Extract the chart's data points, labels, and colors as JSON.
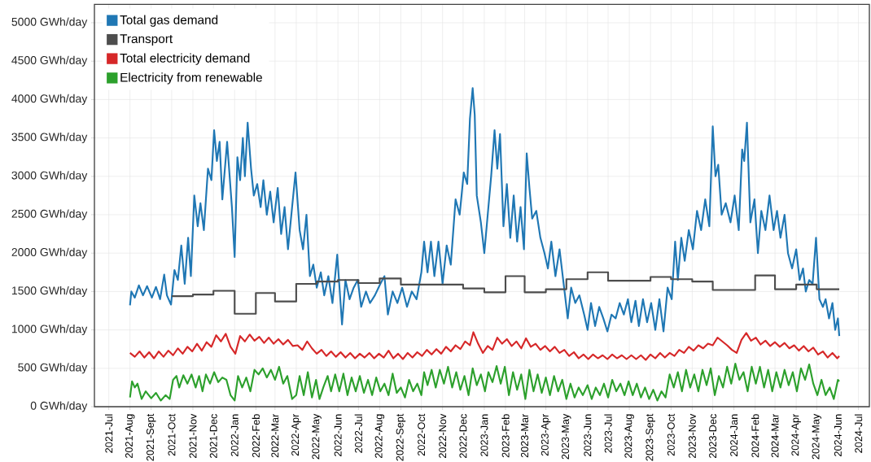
{
  "chart_data": {
    "type": "line",
    "xlim": [
      "2021-06-10",
      "2024-07-17"
    ],
    "ylim": [
      0,
      5240
    ],
    "xticks": [
      {
        "value": "2021-07-01",
        "label": "2021-Jul"
      },
      {
        "value": "2021-08-01",
        "label": "2021-Aug"
      },
      {
        "value": "2021-09-01",
        "label": "2021-Sept"
      },
      {
        "value": "2021-10-01",
        "label": "2021-Oct"
      },
      {
        "value": "2021-11-01",
        "label": "2021-Nov"
      },
      {
        "value": "2021-12-01",
        "label": "2021-Dec"
      },
      {
        "value": "2022-01-01",
        "label": "2022-Jan"
      },
      {
        "value": "2022-02-01",
        "label": "2022-Feb"
      },
      {
        "value": "2022-03-01",
        "label": "2022-Mar"
      },
      {
        "value": "2022-04-01",
        "label": "2022-Apr"
      },
      {
        "value": "2022-05-01",
        "label": "2022-May"
      },
      {
        "value": "2022-06-01",
        "label": "2022-Jun"
      },
      {
        "value": "2022-07-01",
        "label": "2022-Jul"
      },
      {
        "value": "2022-08-01",
        "label": "2022-Aug"
      },
      {
        "value": "2022-09-01",
        "label": "2022-Sept"
      },
      {
        "value": "2022-10-01",
        "label": "2022-Oct"
      },
      {
        "value": "2022-11-01",
        "label": "2022-Nov"
      },
      {
        "value": "2022-12-01",
        "label": "2022-Dec"
      },
      {
        "value": "2023-01-01",
        "label": "2023-Jan"
      },
      {
        "value": "2023-02-01",
        "label": "2023-Feb"
      },
      {
        "value": "2023-03-01",
        "label": "2023-Mar"
      },
      {
        "value": "2023-04-01",
        "label": "2023-Apr"
      },
      {
        "value": "2023-05-01",
        "label": "2023-May"
      },
      {
        "value": "2023-06-01",
        "label": "2023-Jun"
      },
      {
        "value": "2023-07-01",
        "label": "2023-Jul"
      },
      {
        "value": "2023-08-01",
        "label": "2023-Aug"
      },
      {
        "value": "2023-09-01",
        "label": "2023-Sept"
      },
      {
        "value": "2023-10-01",
        "label": "2023-Oct"
      },
      {
        "value": "2023-11-01",
        "label": "2023-Nov"
      },
      {
        "value": "2023-12-01",
        "label": "2023-Dec"
      },
      {
        "value": "2024-01-01",
        "label": "2024-Jan"
      },
      {
        "value": "2024-02-01",
        "label": "2024-Feb"
      },
      {
        "value": "2024-03-01",
        "label": "2024-Mar"
      },
      {
        "value": "2024-04-01",
        "label": "2024-Apr"
      },
      {
        "value": "2024-05-01",
        "label": "2024-May"
      },
      {
        "value": "2024-06-01",
        "label": "2024-Jun"
      },
      {
        "value": "2024-07-01",
        "label": "2024-Jul"
      }
    ],
    "yticks": [
      {
        "value": 0,
        "label": "0 GWh/day"
      },
      {
        "value": 500,
        "label": "500 GWh/day"
      },
      {
        "value": 1000,
        "label": "1000 GWh/day"
      },
      {
        "value": 1500,
        "label": "1500 GWh/day"
      },
      {
        "value": 2000,
        "label": "2000 GWh/day"
      },
      {
        "value": 2500,
        "label": "2500 GWh/day"
      },
      {
        "value": 3000,
        "label": "3000 GWh/day"
      },
      {
        "value": 3500,
        "label": "3500 GWh/day"
      },
      {
        "value": 4000,
        "label": "4000 GWh/day"
      },
      {
        "value": 4500,
        "label": "4500 GWh/day"
      },
      {
        "value": 5000,
        "label": "5000 GWh/day"
      }
    ],
    "grid": true,
    "legend": "top left",
    "series": [
      {
        "name": "Total gas demand",
        "color": "#1f77b4",
        "x": [
          "2021-08-01",
          "2021-08-03",
          "2021-08-08",
          "2021-08-14",
          "2021-08-20",
          "2021-08-26",
          "2021-09-02",
          "2021-09-08",
          "2021-09-14",
          "2021-09-20",
          "2021-09-24",
          "2021-09-30",
          "2021-10-05",
          "2021-10-10",
          "2021-10-15",
          "2021-10-20",
          "2021-10-25",
          "2021-10-29",
          "2021-11-03",
          "2021-11-08",
          "2021-11-12",
          "2021-11-17",
          "2021-11-23",
          "2021-11-28",
          "2021-12-02",
          "2021-12-06",
          "2021-12-10",
          "2021-12-14",
          "2021-12-21",
          "2021-12-28",
          "2022-01-01",
          "2022-01-05",
          "2022-01-09",
          "2022-01-13",
          "2022-01-16",
          "2022-01-20",
          "2022-01-25",
          "2022-01-29",
          "2022-02-03",
          "2022-02-08",
          "2022-02-12",
          "2022-02-17",
          "2022-02-22",
          "2022-02-27",
          "2022-03-05",
          "2022-03-10",
          "2022-03-15",
          "2022-03-20",
          "2022-03-26",
          "2022-03-31",
          "2022-04-06",
          "2022-04-11",
          "2022-04-16",
          "2022-04-21",
          "2022-04-26",
          "2022-05-01",
          "2022-05-07",
          "2022-05-12",
          "2022-05-18",
          "2022-05-24",
          "2022-05-31",
          "2022-06-07",
          "2022-06-12",
          "2022-06-18",
          "2022-06-24",
          "2022-06-30",
          "2022-07-05",
          "2022-07-12",
          "2022-07-18",
          "2022-07-25",
          "2022-08-02",
          "2022-08-08",
          "2022-08-13",
          "2022-08-20",
          "2022-08-27",
          "2022-09-03",
          "2022-09-10",
          "2022-09-17",
          "2022-09-24",
          "2022-10-01",
          "2022-10-05",
          "2022-10-10",
          "2022-10-15",
          "2022-10-20",
          "2022-10-26",
          "2022-11-01",
          "2022-11-07",
          "2022-11-13",
          "2022-11-20",
          "2022-11-26",
          "2022-12-02",
          "2022-12-07",
          "2022-12-11",
          "2022-12-15",
          "2022-12-18",
          "2022-12-21",
          "2022-12-27",
          "2023-01-01",
          "2023-01-06",
          "2023-01-11",
          "2023-01-16",
          "2023-01-20",
          "2023-01-24",
          "2023-01-29",
          "2023-02-03",
          "2023-02-08",
          "2023-02-13",
          "2023-02-18",
          "2023-02-23",
          "2023-02-28",
          "2023-03-04",
          "2023-03-08",
          "2023-03-12",
          "2023-03-18",
          "2023-03-24",
          "2023-03-30",
          "2023-04-04",
          "2023-04-09",
          "2023-04-15",
          "2023-04-21",
          "2023-04-27",
          "2023-05-03",
          "2023-05-08",
          "2023-05-14",
          "2023-05-20",
          "2023-05-27",
          "2023-06-01",
          "2023-06-06",
          "2023-06-12",
          "2023-06-18",
          "2023-06-24",
          "2023-06-30",
          "2023-07-06",
          "2023-07-12",
          "2023-07-18",
          "2023-07-24",
          "2023-07-30",
          "2023-08-04",
          "2023-08-10",
          "2023-08-15",
          "2023-08-21",
          "2023-08-27",
          "2023-09-02",
          "2023-09-08",
          "2023-09-14",
          "2023-09-20",
          "2023-09-26",
          "2023-10-02",
          "2023-10-07",
          "2023-10-11",
          "2023-10-16",
          "2023-10-21",
          "2023-10-27",
          "2023-11-02",
          "2023-11-08",
          "2023-11-14",
          "2023-11-20",
          "2023-11-26",
          "2023-12-01",
          "2023-12-05",
          "2023-12-09",
          "2023-12-14",
          "2023-12-20",
          "2023-12-27",
          "2024-01-02",
          "2024-01-08",
          "2024-01-13",
          "2024-01-16",
          "2024-01-20",
          "2024-01-25",
          "2024-01-31",
          "2024-02-05",
          "2024-02-10",
          "2024-02-16",
          "2024-02-22",
          "2024-02-28",
          "2024-03-04",
          "2024-03-09",
          "2024-03-15",
          "2024-03-20",
          "2024-03-26",
          "2024-04-01",
          "2024-04-06",
          "2024-04-11",
          "2024-04-15",
          "2024-04-20",
          "2024-04-25",
          "2024-04-30",
          "2024-05-05",
          "2024-05-10",
          "2024-05-14",
          "2024-05-19",
          "2024-05-24",
          "2024-05-28",
          "2024-06-01",
          "2024-06-03"
        ],
        "values": [
          1320,
          1500,
          1420,
          1580,
          1450,
          1570,
          1420,
          1560,
          1400,
          1720,
          1450,
          1330,
          1780,
          1650,
          2100,
          1600,
          2200,
          1700,
          2750,
          2350,
          2650,
          2300,
          3100,
          2950,
          3600,
          3200,
          3450,
          2700,
          3450,
          2600,
          1950,
          3250,
          2950,
          3500,
          3000,
          3700,
          3100,
          2750,
          2900,
          2600,
          2950,
          2500,
          2800,
          2400,
          2850,
          2250,
          2600,
          2050,
          2600,
          3050,
          2300,
          2050,
          2500,
          1700,
          1850,
          1550,
          1750,
          1450,
          1700,
          1350,
          1980,
          1070,
          1650,
          1400,
          1550,
          1650,
          1300,
          1500,
          1350,
          1450,
          1600,
          1700,
          1200,
          1500,
          1350,
          1550,
          1300,
          1500,
          1400,
          1750,
          2150,
          1750,
          2150,
          1700,
          2150,
          1600,
          2100,
          1850,
          2700,
          2500,
          3050,
          2900,
          3750,
          4150,
          3800,
          2750,
          2400,
          2000,
          2500,
          3000,
          3600,
          3100,
          3550,
          2350,
          2900,
          2200,
          2750,
          2150,
          2600,
          2050,
          3300,
          2850,
          2450,
          2550,
          2200,
          2000,
          1800,
          2150,
          1700,
          2050,
          1600,
          1150,
          1550,
          1350,
          1450,
          1200,
          1000,
          1350,
          1050,
          1300,
          1150,
          980,
          1200,
          1150,
          1350,
          1200,
          1400,
          1100,
          1380,
          1050,
          1400,
          1100,
          1350,
          1000,
          1400,
          980,
          1550,
          1400,
          2150,
          1650,
          2200,
          1900,
          2300,
          2050,
          2550,
          2300,
          2700,
          2350,
          3650,
          3000,
          3150,
          2500,
          2650,
          2400,
          2750,
          2300,
          3350,
          3200,
          3700,
          2400,
          2700,
          2000,
          2550,
          2300,
          2750,
          2300,
          2550,
          2200,
          2500,
          2000,
          1800,
          2050,
          1650,
          1800,
          1500,
          1650,
          1600,
          2200,
          1400,
          1300,
          1400,
          1150,
          1350,
          1000,
          1150,
          920
        ]
      },
      {
        "name": "Transport",
        "color": "#4d4d4d",
        "type": "step",
        "x": [
          "2021-10-01",
          "2021-11-01",
          "2021-12-01",
          "2022-01-01",
          "2022-02-01",
          "2022-03-01",
          "2022-04-01",
          "2022-05-01",
          "2022-06-01",
          "2022-07-01",
          "2022-08-01",
          "2022-09-01",
          "2022-10-01",
          "2022-11-01",
          "2022-12-01",
          "2023-01-01",
          "2023-02-01",
          "2023-03-01",
          "2023-04-01",
          "2023-05-01",
          "2023-06-01",
          "2023-07-01",
          "2023-08-01",
          "2023-09-01",
          "2023-10-01",
          "2023-11-01",
          "2023-12-01",
          "2024-01-01",
          "2024-02-01",
          "2024-03-01",
          "2024-04-01",
          "2024-05-01",
          "2024-06-03"
        ],
        "values": [
          1440,
          1460,
          1510,
          1210,
          1480,
          1370,
          1600,
          1630,
          1650,
          1610,
          1670,
          1590,
          1590,
          1590,
          1540,
          1490,
          1700,
          1490,
          1530,
          1660,
          1750,
          1640,
          1640,
          1690,
          1660,
          1630,
          1520,
          1520,
          1710,
          1530,
          1590,
          1530,
          1530
        ]
      },
      {
        "name": "Total electricity demand",
        "color": "#d62728",
        "x": [
          "2021-08-01",
          "2021-08-08",
          "2021-08-15",
          "2021-08-22",
          "2021-08-29",
          "2021-09-05",
          "2021-09-12",
          "2021-09-19",
          "2021-09-26",
          "2021-10-03",
          "2021-10-10",
          "2021-10-17",
          "2021-10-24",
          "2021-10-31",
          "2021-11-07",
          "2021-11-14",
          "2021-11-21",
          "2021-11-28",
          "2021-12-05",
          "2021-12-12",
          "2021-12-19",
          "2021-12-26",
          "2022-01-02",
          "2022-01-09",
          "2022-01-16",
          "2022-01-23",
          "2022-01-30",
          "2022-02-06",
          "2022-02-13",
          "2022-02-20",
          "2022-02-27",
          "2022-03-06",
          "2022-03-13",
          "2022-03-20",
          "2022-03-27",
          "2022-04-03",
          "2022-04-10",
          "2022-04-17",
          "2022-04-24",
          "2022-05-01",
          "2022-05-08",
          "2022-05-15",
          "2022-05-22",
          "2022-05-29",
          "2022-06-05",
          "2022-06-12",
          "2022-06-19",
          "2022-06-26",
          "2022-07-03",
          "2022-07-10",
          "2022-07-17",
          "2022-07-24",
          "2022-07-31",
          "2022-08-07",
          "2022-08-14",
          "2022-08-21",
          "2022-08-28",
          "2022-09-04",
          "2022-09-11",
          "2022-09-18",
          "2022-09-25",
          "2022-10-02",
          "2022-10-09",
          "2022-10-16",
          "2022-10-23",
          "2022-10-30",
          "2022-11-06",
          "2022-11-13",
          "2022-11-20",
          "2022-11-27",
          "2022-12-04",
          "2022-12-11",
          "2022-12-16",
          "2022-12-23",
          "2022-12-30",
          "2023-01-06",
          "2023-01-13",
          "2023-01-20",
          "2023-01-27",
          "2023-02-03",
          "2023-02-10",
          "2023-02-17",
          "2023-02-24",
          "2023-03-03",
          "2023-03-10",
          "2023-03-17",
          "2023-03-24",
          "2023-03-31",
          "2023-04-07",
          "2023-04-14",
          "2023-04-21",
          "2023-04-28",
          "2023-05-05",
          "2023-05-12",
          "2023-05-19",
          "2023-05-26",
          "2023-06-02",
          "2023-06-09",
          "2023-06-16",
          "2023-06-23",
          "2023-06-30",
          "2023-07-07",
          "2023-07-14",
          "2023-07-21",
          "2023-07-28",
          "2023-08-04",
          "2023-08-11",
          "2023-08-18",
          "2023-08-25",
          "2023-09-01",
          "2023-09-08",
          "2023-09-15",
          "2023-09-22",
          "2023-09-29",
          "2023-10-06",
          "2023-10-13",
          "2023-10-20",
          "2023-10-27",
          "2023-11-03",
          "2023-11-10",
          "2023-11-17",
          "2023-11-24",
          "2023-12-01",
          "2023-12-08",
          "2023-12-15",
          "2023-12-22",
          "2023-12-29",
          "2024-01-05",
          "2024-01-12",
          "2024-01-19",
          "2024-01-26",
          "2024-02-02",
          "2024-02-09",
          "2024-02-16",
          "2024-02-23",
          "2024-03-01",
          "2024-03-08",
          "2024-03-15",
          "2024-03-22",
          "2024-03-29",
          "2024-04-05",
          "2024-04-12",
          "2024-04-19",
          "2024-04-26",
          "2024-05-03",
          "2024-05-10",
          "2024-05-17",
          "2024-05-24",
          "2024-05-31",
          "2024-06-03"
        ],
        "values": [
          700,
          650,
          720,
          640,
          710,
          630,
          720,
          650,
          730,
          670,
          760,
          690,
          780,
          720,
          820,
          730,
          840,
          780,
          930,
          850,
          950,
          780,
          690,
          920,
          850,
          940,
          860,
          910,
          830,
          900,
          820,
          880,
          810,
          870,
          790,
          800,
          740,
          850,
          760,
          690,
          740,
          660,
          720,
          650,
          710,
          640,
          700,
          630,
          690,
          640,
          700,
          630,
          690,
          640,
          730,
          630,
          690,
          620,
          700,
          640,
          710,
          660,
          740,
          680,
          750,
          690,
          780,
          720,
          800,
          750,
          850,
          800,
          970,
          820,
          700,
          790,
          740,
          900,
          820,
          880,
          790,
          850,
          760,
          890,
          780,
          820,
          740,
          790,
          720,
          780,
          700,
          740,
          660,
          710,
          630,
          680,
          620,
          680,
          630,
          670,
          620,
          680,
          630,
          670,
          620,
          670,
          620,
          670,
          610,
          680,
          630,
          700,
          640,
          700,
          660,
          740,
          700,
          780,
          730,
          800,
          760,
          820,
          800,
          900,
          850,
          800,
          740,
          700,
          870,
          960,
          860,
          900,
          810,
          860,
          790,
          840,
          780,
          830,
          760,
          800,
          730,
          790,
          720,
          770,
          680,
          720,
          640,
          700,
          630,
          660
        ]
      },
      {
        "name": "Electricity from renewable",
        "color": "#2ca02c",
        "x": [
          "2021-08-01",
          "2021-08-04",
          "2021-08-08",
          "2021-08-12",
          "2021-08-18",
          "2021-08-24",
          "2021-09-01",
          "2021-09-08",
          "2021-09-15",
          "2021-09-22",
          "2021-09-28",
          "2021-10-03",
          "2021-10-08",
          "2021-10-12",
          "2021-10-18",
          "2021-10-24",
          "2021-10-30",
          "2021-11-05",
          "2021-11-10",
          "2021-11-15",
          "2021-11-20",
          "2021-11-26",
          "2021-12-02",
          "2021-12-08",
          "2021-12-14",
          "2021-12-20",
          "2021-12-26",
          "2022-01-01",
          "2022-01-06",
          "2022-01-12",
          "2022-01-18",
          "2022-01-24",
          "2022-01-30",
          "2022-02-05",
          "2022-02-11",
          "2022-02-17",
          "2022-02-23",
          "2022-03-01",
          "2022-03-07",
          "2022-03-13",
          "2022-03-19",
          "2022-03-26",
          "2022-04-01",
          "2022-04-06",
          "2022-04-12",
          "2022-04-18",
          "2022-04-24",
          "2022-04-30",
          "2022-05-05",
          "2022-05-11",
          "2022-05-17",
          "2022-05-22",
          "2022-05-28",
          "2022-06-03",
          "2022-06-09",
          "2022-06-15",
          "2022-06-21",
          "2022-06-27",
          "2022-07-03",
          "2022-07-09",
          "2022-07-15",
          "2022-07-21",
          "2022-07-27",
          "2022-08-02",
          "2022-08-08",
          "2022-08-14",
          "2022-08-20",
          "2022-08-26",
          "2022-09-01",
          "2022-09-07",
          "2022-09-13",
          "2022-09-19",
          "2022-09-25",
          "2022-10-01",
          "2022-10-05",
          "2022-10-10",
          "2022-10-16",
          "2022-10-22",
          "2022-10-28",
          "2022-11-03",
          "2022-11-09",
          "2022-11-15",
          "2022-11-21",
          "2022-11-27",
          "2022-12-03",
          "2022-12-09",
          "2022-12-15",
          "2022-12-21",
          "2022-12-27",
          "2023-01-02",
          "2023-01-07",
          "2023-01-13",
          "2023-01-19",
          "2023-01-25",
          "2023-01-31",
          "2023-02-06",
          "2023-02-12",
          "2023-02-18",
          "2023-02-24",
          "2023-03-02",
          "2023-03-08",
          "2023-03-14",
          "2023-03-20",
          "2023-03-26",
          "2023-04-01",
          "2023-04-07",
          "2023-04-13",
          "2023-04-19",
          "2023-04-25",
          "2023-05-01",
          "2023-05-07",
          "2023-05-13",
          "2023-05-19",
          "2023-05-25",
          "2023-06-01",
          "2023-06-07",
          "2023-06-13",
          "2023-06-19",
          "2023-06-25",
          "2023-07-01",
          "2023-07-07",
          "2023-07-13",
          "2023-07-19",
          "2023-07-25",
          "2023-07-31",
          "2023-08-06",
          "2023-08-12",
          "2023-08-18",
          "2023-08-24",
          "2023-08-30",
          "2023-09-05",
          "2023-09-11",
          "2023-09-17",
          "2023-09-23",
          "2023-09-29",
          "2023-10-05",
          "2023-10-11",
          "2023-10-17",
          "2023-10-23",
          "2023-10-29",
          "2023-11-04",
          "2023-11-10",
          "2023-11-16",
          "2023-11-22",
          "2023-11-28",
          "2023-12-04",
          "2023-12-10",
          "2023-12-16",
          "2023-12-22",
          "2023-12-28",
          "2024-01-03",
          "2024-01-09",
          "2024-01-15",
          "2024-01-21",
          "2024-01-27",
          "2024-02-02",
          "2024-02-08",
          "2024-02-14",
          "2024-02-20",
          "2024-02-26",
          "2024-03-03",
          "2024-03-09",
          "2024-03-15",
          "2024-03-21",
          "2024-03-27",
          "2024-04-02",
          "2024-04-08",
          "2024-04-14",
          "2024-04-20",
          "2024-04-26",
          "2024-05-02",
          "2024-05-08",
          "2024-05-14",
          "2024-05-20",
          "2024-05-26",
          "2024-06-01",
          "2024-06-03"
        ],
        "values": [
          120,
          330,
          250,
          300,
          100,
          200,
          110,
          180,
          80,
          150,
          100,
          350,
          400,
          250,
          410,
          300,
          420,
          250,
          400,
          200,
          420,
          300,
          450,
          320,
          380,
          350,
          150,
          80,
          400,
          250,
          380,
          200,
          480,
          420,
          500,
          380,
          480,
          350,
          520,
          300,
          400,
          100,
          150,
          400,
          150,
          450,
          120,
          350,
          100,
          260,
          400,
          200,
          420,
          200,
          430,
          150,
          380,
          200,
          400,
          180,
          350,
          150,
          380,
          200,
          300,
          150,
          430,
          180,
          250,
          120,
          350,
          200,
          300,
          150,
          450,
          280,
          480,
          250,
          480,
          300,
          520,
          250,
          450,
          220,
          400,
          150,
          500,
          280,
          420,
          200,
          450,
          320,
          530,
          300,
          520,
          150,
          450,
          220,
          420,
          100,
          480,
          200,
          420,
          180,
          380,
          150,
          400,
          200,
          350,
          100,
          300,
          120,
          250,
          150,
          280,
          100,
          250,
          150,
          300,
          120,
          350,
          200,
          300,
          150,
          330,
          150,
          300,
          120,
          250,
          100,
          220,
          80,
          200,
          120,
          420,
          250,
          450,
          200,
          480,
          250,
          420,
          200,
          480,
          280,
          500,
          150,
          400,
          250,
          520,
          300,
          560,
          350,
          450,
          200,
          520,
          300,
          520,
          250,
          480,
          200,
          450,
          250,
          480,
          280,
          450,
          200,
          500,
          350,
          550,
          300,
          150,
          350,
          150,
          250,
          100,
          350,
          330
        ]
      }
    ]
  }
}
